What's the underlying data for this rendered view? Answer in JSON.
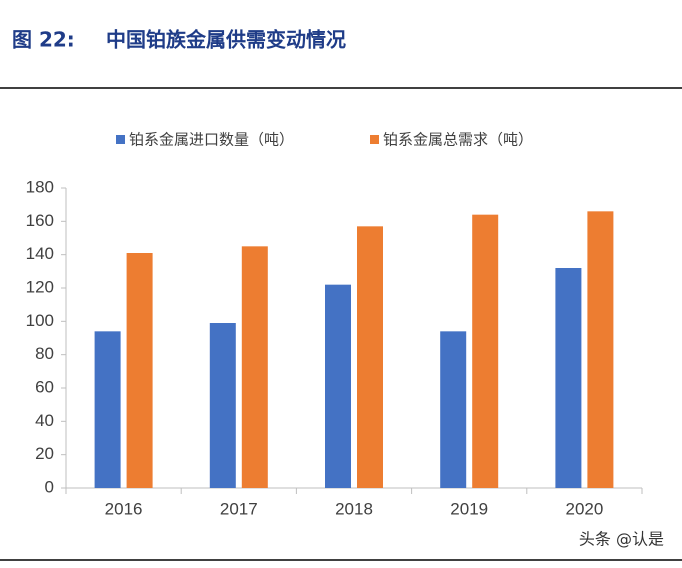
{
  "chart_data": {
    "type": "bar",
    "figure_label": "图 22:",
    "title": "中国铂族金属供需变动情况",
    "categories": [
      "2016",
      "2017",
      "2018",
      "2019",
      "2020"
    ],
    "series": [
      {
        "name": "铂系金属进口数量（吨）",
        "color": "#4472c4",
        "values": [
          94,
          99,
          122,
          94,
          132
        ]
      },
      {
        "name": "铂系金属总需求（吨）",
        "color": "#ed7d31",
        "values": [
          141,
          145,
          157,
          164,
          166
        ]
      }
    ],
    "ylim": [
      0,
      180
    ],
    "yticks": [
      0,
      20,
      40,
      60,
      80,
      100,
      120,
      140,
      160,
      180
    ],
    "legend": "top",
    "watermark": "头条 @认是"
  }
}
